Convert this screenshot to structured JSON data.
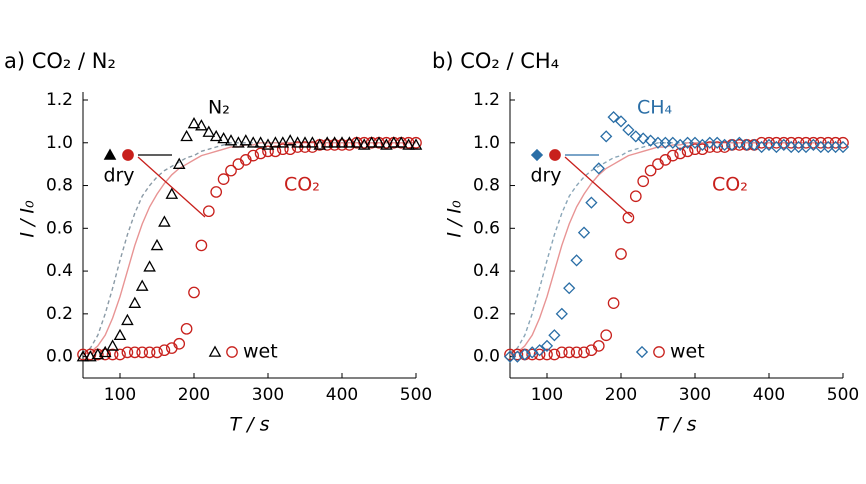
{
  "chart_data": [
    {
      "type": "line",
      "title": "a) CO₂ / N₂",
      "x_label": "T / s",
      "y_label": "I / I₀",
      "xlim": [
        50,
        500
      ],
      "xticks": [
        100,
        200,
        300,
        400,
        500
      ],
      "ylim": [
        -0.1,
        1.2
      ],
      "yticks": [
        {
          "value": 0,
          "label": "0.0"
        },
        0.2,
        0.4,
        0.6,
        0.8,
        {
          "value": 1,
          "label": "1.0"
        },
        1.2
      ],
      "conditions": [
        "dry",
        "wet"
      ],
      "x": [
        50,
        60,
        70,
        80,
        90,
        100,
        110,
        120,
        130,
        140,
        150,
        160,
        170,
        180,
        190,
        200,
        210,
        220,
        230,
        240,
        250,
        260,
        270,
        280,
        290,
        300,
        310,
        320,
        330,
        340,
        350,
        360,
        370,
        380,
        390,
        400,
        410,
        420,
        430,
        440,
        450,
        460,
        470,
        480,
        490,
        500
      ],
      "series": [
        {
          "name": "N₂",
          "color": "#000000",
          "dry_color": "#8a9aa6",
          "dry_style": "dashed",
          "marker": "triangle",
          "wet": [
            0,
            0,
            0.01,
            0.02,
            0.05,
            0.1,
            0.17,
            0.25,
            0.33,
            0.42,
            0.52,
            0.63,
            0.76,
            0.9,
            1.03,
            1.09,
            1.08,
            1.05,
            1.03,
            1.02,
            1.01,
            1.0,
            1.01,
            1.0,
            1.0,
            0.99,
            1.0,
            1.0,
            1.01,
            1.0,
            1.0,
            1.0,
            0.99,
            1.0,
            1.0,
            1.0,
            1.0,
            1.0,
            0.99,
            1.0,
            1.0,
            0.99,
            1.0,
            1.0,
            0.99,
            0.99
          ],
          "dry": [
            0.02,
            0.04,
            0.1,
            0.2,
            0.32,
            0.45,
            0.57,
            0.67,
            0.75,
            0.8,
            0.84,
            0.87,
            0.89,
            0.91,
            0.93,
            0.94,
            0.96,
            0.97,
            0.98,
            0.99,
            1.0,
            1.0,
            1.0,
            1.0,
            1.0,
            1.0,
            1.0,
            1.0,
            1.0,
            1.0,
            1.0,
            1.0,
            1.0,
            1.0,
            1.0,
            1.0,
            1.0,
            1.0,
            1.0,
            1.0,
            1.0,
            1.0,
            1.0,
            1.0,
            1.0,
            1.0
          ]
        },
        {
          "name": "CO₂",
          "color": "#c8201c",
          "dry_color": "#e89494",
          "dry_style": "solid",
          "marker": "circle",
          "wet": [
            0.01,
            0.01,
            0.01,
            0.01,
            0.01,
            0.01,
            0.02,
            0.02,
            0.02,
            0.02,
            0.02,
            0.03,
            0.04,
            0.06,
            0.13,
            0.3,
            0.52,
            0.68,
            0.77,
            0.83,
            0.87,
            0.9,
            0.92,
            0.94,
            0.95,
            0.96,
            0.96,
            0.97,
            0.97,
            0.98,
            0.98,
            0.98,
            0.99,
            0.99,
            0.99,
            0.99,
            0.99,
            1.0,
            1.0,
            1.0,
            1.0,
            1.0,
            1.0,
            1.0,
            1.0,
            1.0
          ],
          "dry": [
            0.01,
            0.02,
            0.05,
            0.1,
            0.18,
            0.28,
            0.4,
            0.52,
            0.62,
            0.7,
            0.76,
            0.81,
            0.85,
            0.88,
            0.9,
            0.92,
            0.94,
            0.95,
            0.96,
            0.97,
            0.98,
            0.98,
            0.99,
            0.99,
            1.0,
            1.0,
            1.0,
            1.0,
            1.0,
            1.0,
            1.0,
            1.0,
            1.0,
            1.0,
            1.0,
            1.0,
            1.0,
            1.0,
            1.0,
            1.0,
            1.0,
            1.0,
            1.0,
            1.0,
            1.0,
            1.0
          ]
        }
      ]
    },
    {
      "type": "line",
      "title": "b) CO₂ / CH₄",
      "x_label": "T / s",
      "y_label": "I / I₀",
      "xlim": [
        50,
        500
      ],
      "xticks": [
        100,
        200,
        300,
        400,
        500
      ],
      "ylim": [
        -0.1,
        1.2
      ],
      "yticks": [
        {
          "value": 0,
          "label": "0.0"
        },
        0.2,
        0.4,
        0.6,
        0.8,
        {
          "value": 1,
          "label": "1.0"
        },
        1.2
      ],
      "conditions": [
        "dry",
        "wet"
      ],
      "x": [
        50,
        60,
        70,
        80,
        90,
        100,
        110,
        120,
        130,
        140,
        150,
        160,
        170,
        180,
        190,
        200,
        210,
        220,
        230,
        240,
        250,
        260,
        270,
        280,
        290,
        300,
        310,
        320,
        330,
        340,
        350,
        360,
        370,
        380,
        390,
        400,
        410,
        420,
        430,
        440,
        450,
        460,
        470,
        480,
        490,
        500
      ],
      "series": [
        {
          "name": "CH₄",
          "color": "#2a6ea6",
          "dry_color": "#8aa6b8",
          "dry_style": "dashed",
          "marker": "diamond",
          "wet": [
            0,
            0,
            0.01,
            0.02,
            0.03,
            0.05,
            0.1,
            0.2,
            0.32,
            0.45,
            0.58,
            0.72,
            0.88,
            1.03,
            1.12,
            1.1,
            1.06,
            1.03,
            1.02,
            1.01,
            1.0,
            1.0,
            1.0,
            0.99,
            1.0,
            1.0,
            0.99,
            1.0,
            1.0,
            0.99,
            0.99,
            1.0,
            0.99,
            0.99,
            0.98,
            0.99,
            0.98,
            0.99,
            0.98,
            0.98,
            0.98,
            0.99,
            0.98,
            0.98,
            0.98,
            0.98
          ],
          "dry": [
            0.02,
            0.04,
            0.1,
            0.2,
            0.32,
            0.45,
            0.57,
            0.67,
            0.75,
            0.8,
            0.84,
            0.87,
            0.89,
            0.91,
            0.93,
            0.94,
            0.96,
            0.97,
            0.98,
            0.99,
            1.0,
            1.0,
            1.0,
            1.0,
            1.0,
            1.0,
            1.0,
            1.0,
            1.0,
            1.0,
            1.0,
            1.0,
            1.0,
            1.0,
            1.0,
            1.0,
            1.0,
            1.0,
            1.0,
            1.0,
            1.0,
            1.0,
            1.0,
            1.0,
            1.0,
            1.0
          ]
        },
        {
          "name": "CO₂",
          "color": "#c8201c",
          "dry_color": "#e89494",
          "dry_style": "solid",
          "marker": "circle",
          "wet": [
            0.01,
            0.01,
            0.01,
            0.01,
            0.01,
            0.01,
            0.01,
            0.02,
            0.02,
            0.02,
            0.02,
            0.03,
            0.05,
            0.1,
            0.25,
            0.48,
            0.65,
            0.75,
            0.82,
            0.87,
            0.9,
            0.92,
            0.94,
            0.95,
            0.96,
            0.97,
            0.97,
            0.98,
            0.98,
            0.98,
            0.99,
            0.99,
            0.99,
            0.99,
            1.0,
            1.0,
            1.0,
            1.0,
            1.0,
            1.0,
            1.0,
            1.0,
            1.0,
            1.0,
            1.0,
            1.0
          ],
          "dry": [
            0.01,
            0.02,
            0.05,
            0.1,
            0.18,
            0.28,
            0.4,
            0.52,
            0.62,
            0.7,
            0.76,
            0.81,
            0.85,
            0.88,
            0.9,
            0.92,
            0.94,
            0.95,
            0.96,
            0.97,
            0.98,
            0.98,
            0.99,
            0.99,
            1.0,
            1.0,
            1.0,
            1.0,
            1.0,
            1.0,
            1.0,
            1.0,
            1.0,
            1.0,
            1.0,
            1.0,
            1.0,
            1.0,
            1.0,
            1.0,
            1.0,
            1.0,
            1.0,
            1.0,
            1.0,
            1.0
          ]
        }
      ]
    }
  ]
}
